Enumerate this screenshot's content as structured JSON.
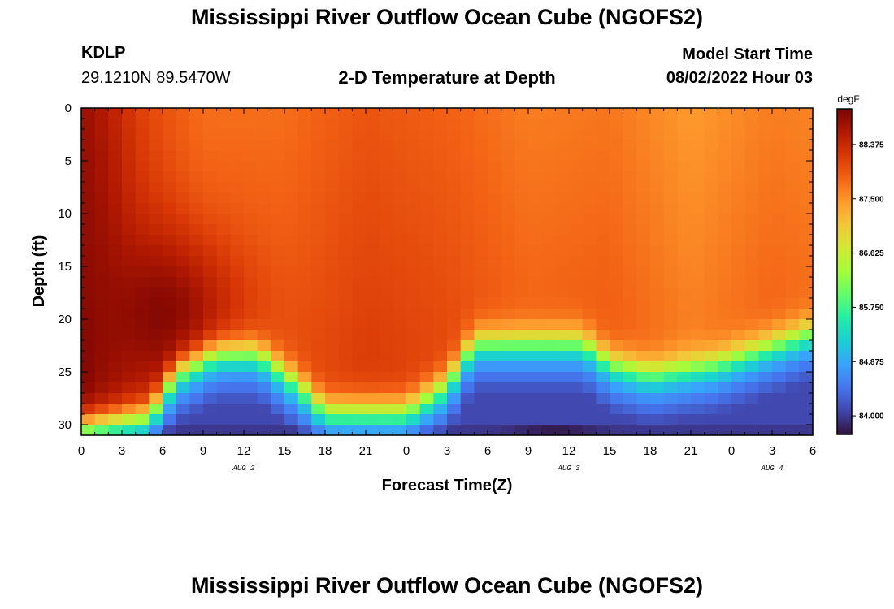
{
  "header": {
    "title": "Mississippi River Outflow Ocean Cube (NGOFS2)",
    "station": "KDLP",
    "coords": "29.1210N  89.5470W",
    "subtitle": "2-D Temperature at Depth",
    "start_label": "Model Start Time",
    "start_value": "08/02/2022 Hour 03"
  },
  "footer": {
    "title": "Mississippi River Outflow Ocean Cube (NGOFS2)"
  },
  "chart_data": {
    "type": "heatmap",
    "title": "2-D Temperature at Depth",
    "xlabel": "Forecast Time(Z)",
    "ylabel": "Depth (ft)",
    "x_ticks": [
      "0",
      "3",
      "6",
      "9",
      "12",
      "15",
      "18",
      "21",
      "0",
      "3",
      "6",
      "9",
      "12",
      "15",
      "18",
      "21",
      "0",
      "3",
      "6"
    ],
    "x_hours_range": [
      0,
      54
    ],
    "date_labels": [
      {
        "label": "AUG 2",
        "hour": 12
      },
      {
        "label": "AUG 3",
        "hour": 36
      },
      {
        "label": "AUG 4",
        "hour": 51
      }
    ],
    "y_ticks": [
      "0",
      "5",
      "10",
      "15",
      "20",
      "25",
      "30"
    ],
    "ylim": [
      0,
      31
    ],
    "colorbar": {
      "units": "degF",
      "range": [
        83.7,
        88.95
      ],
      "ticks": [
        "88.375",
        "87.500",
        "86.625",
        "85.750",
        "84.875",
        "84.000"
      ],
      "tick_values": [
        88.375,
        87.5,
        86.625,
        85.75,
        84.875,
        84.0
      ],
      "stops": [
        "#30123b",
        "#4145ab",
        "#4675ed",
        "#39a2fc",
        "#1bcfd4",
        "#24eca6",
        "#61fc6c",
        "#a4fc3b",
        "#d1e834",
        "#f3c63a",
        "#fe9b2d",
        "#f36315",
        "#d93806",
        "#b11901",
        "#7a0403"
      ]
    },
    "field": {
      "surface_profile": [
        {
          "hour": 0,
          "temp": 88.7
        },
        {
          "hour": 4,
          "temp": 88.1
        },
        {
          "hour": 9,
          "temp": 87.75
        },
        {
          "hour": 15,
          "temp": 87.75
        },
        {
          "hour": 21,
          "temp": 87.95
        },
        {
          "hour": 27,
          "temp": 87.85
        },
        {
          "hour": 33,
          "temp": 87.65
        },
        {
          "hour": 39,
          "temp": 87.7
        },
        {
          "hour": 45,
          "temp": 87.45
        },
        {
          "hour": 51,
          "temp": 87.65
        },
        {
          "hour": 54,
          "temp": 87.6
        }
      ],
      "warm_core": {
        "hour": 6,
        "depth_ft": 19.5,
        "temp": 89.0
      },
      "thermocline_depth_ft": [
        {
          "hour": 0,
          "depth": 30
        },
        {
          "hour": 5,
          "depth": 29
        },
        {
          "hour": 7,
          "depth": 25
        },
        {
          "hour": 10,
          "depth": 23
        },
        {
          "hour": 13,
          "depth": 23
        },
        {
          "hour": 16,
          "depth": 26
        },
        {
          "hour": 18,
          "depth": 28.5
        },
        {
          "hour": 24,
          "depth": 28.5
        },
        {
          "hour": 27,
          "depth": 26
        },
        {
          "hour": 29,
          "depth": 22
        },
        {
          "hour": 37,
          "depth": 22
        },
        {
          "hour": 39,
          "depth": 24
        },
        {
          "hour": 42,
          "depth": 25
        },
        {
          "hour": 47,
          "depth": 24
        },
        {
          "hour": 54,
          "depth": 21
        }
      ],
      "bottom_temp": 84.1,
      "min_temp": {
        "hour": 35,
        "depth_ft": 31,
        "temp": 83.7
      }
    }
  }
}
